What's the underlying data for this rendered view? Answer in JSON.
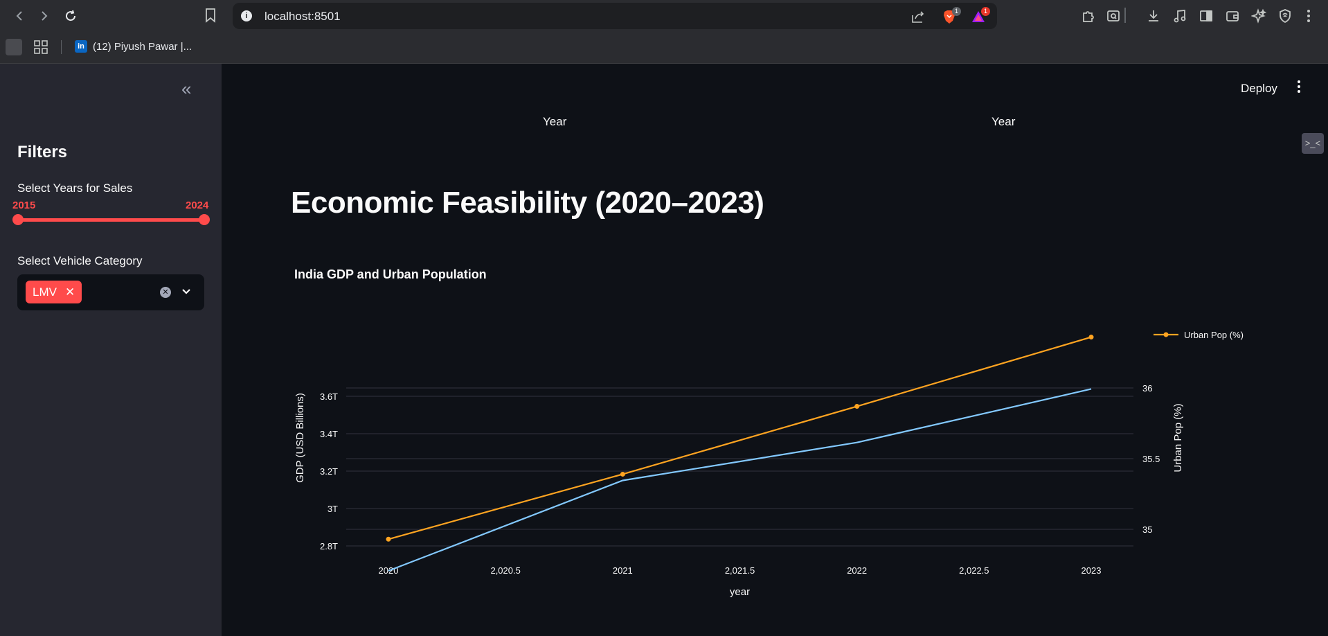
{
  "browser": {
    "url": "localhost:8501",
    "brave_badge": "1",
    "rewards_badge": "1",
    "bookmark_link": "(12) Piyush Pawar |..."
  },
  "sidebar": {
    "title": "Filters",
    "slider_label": "Select Years for Sales",
    "slider_min": "2015",
    "slider_max": "2024",
    "select_label": "Select Vehicle Category",
    "selected_tag": "LMV"
  },
  "header": {
    "deploy": "Deploy",
    "year_labels": [
      "Year",
      "Year"
    ]
  },
  "page_title": "Economic Feasibility (2020–2023)",
  "chart_data": {
    "type": "line",
    "title": "India GDP and Urban Population",
    "xlabel": "year",
    "ylabel_left": "GDP (USD Billions)",
    "ylabel_right": "Urban Pop (%)",
    "x": [
      2020,
      2021,
      2022,
      2023
    ],
    "x_ticks": [
      "2020",
      "2,020.5",
      "2021",
      "2,021.5",
      "2022",
      "2,022.5",
      "2023"
    ],
    "y_left_ticks": [
      "2.8T",
      "3T",
      "3.2T",
      "3.4T",
      "3.6T"
    ],
    "y_right_ticks": [
      "35",
      "35.5",
      "36"
    ],
    "xlim": [
      2020,
      2023
    ],
    "ylim_left": [
      2600,
      3700
    ],
    "ylim_right": [
      34.98,
      36.18
    ],
    "series": [
      {
        "axis": "left",
        "color": "#83c9ff",
        "values": [
          2667,
          3150,
          3353,
          3639
        ]
      },
      {
        "name": "Urban Pop (%)",
        "axis": "right",
        "color": "#ffa421",
        "values": [
          34.93,
          35.39,
          35.87,
          36.36
        ]
      }
    ],
    "legend": "top-right",
    "grid": true
  },
  "colors": {
    "accent": "#ff4b4b",
    "background": "#0e1117",
    "sidebar": "#262730"
  }
}
